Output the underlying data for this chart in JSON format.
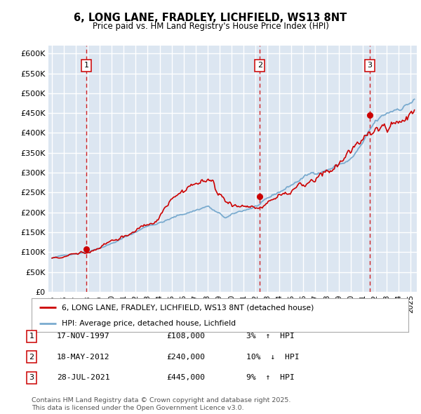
{
  "title_line1": "6, LONG LANE, FRADLEY, LICHFIELD, WS13 8NT",
  "title_line2": "Price paid vs. HM Land Registry's House Price Index (HPI)",
  "ylim": [
    0,
    620000
  ],
  "yticks": [
    0,
    50000,
    100000,
    150000,
    200000,
    250000,
    300000,
    350000,
    400000,
    450000,
    500000,
    550000,
    600000
  ],
  "ytick_labels": [
    "£0",
    "£50K",
    "£100K",
    "£150K",
    "£200K",
    "£250K",
    "£300K",
    "£350K",
    "£400K",
    "£450K",
    "£500K",
    "£550K",
    "£600K"
  ],
  "xlim_start": 1994.7,
  "xlim_end": 2025.5,
  "plot_bg_color": "#dce6f1",
  "grid_color": "#ffffff",
  "line_color_red": "#cc0000",
  "line_color_blue": "#7aabcf",
  "transactions": [
    {
      "num": 1,
      "date": "17-NOV-1997",
      "price": 108000,
      "pct": "3%",
      "dir": "↑",
      "x_year": 1997.88
    },
    {
      "num": 2,
      "date": "18-MAY-2012",
      "price": 240000,
      "pct": "10%",
      "dir": "↓",
      "x_year": 2012.38
    },
    {
      "num": 3,
      "date": "28-JUL-2021",
      "price": 445000,
      "pct": "9%",
      "dir": "↑",
      "x_year": 2021.57
    }
  ],
  "legend_entries": [
    "6, LONG LANE, FRADLEY, LICHFIELD, WS13 8NT (detached house)",
    "HPI: Average price, detached house, Lichfield"
  ],
  "footer": "Contains HM Land Registry data © Crown copyright and database right 2025.\nThis data is licensed under the Open Government Licence v3.0."
}
